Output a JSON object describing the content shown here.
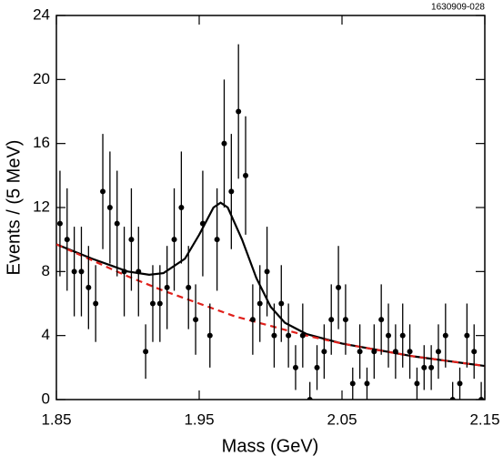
{
  "chart_data": {
    "type": "scatter",
    "annotation": "1630909-028",
    "x_label": "Mass (GeV)",
    "y_label": "Events / (5 MeV)",
    "xlim": [
      1.85,
      2.15
    ],
    "ylim": [
      0,
      24
    ],
    "xticks": [
      1.85,
      1.95,
      2.05,
      2.15
    ],
    "yticks": [
      0,
      4,
      8,
      12,
      16,
      20,
      24
    ],
    "points": {
      "color": "#000000",
      "x": [
        1.8525,
        1.8575,
        1.8625,
        1.8675,
        1.8725,
        1.8775,
        1.8825,
        1.8875,
        1.8925,
        1.8975,
        1.9025,
        1.9075,
        1.9125,
        1.9175,
        1.9225,
        1.9275,
        1.9325,
        1.9375,
        1.9425,
        1.9475,
        1.9525,
        1.9575,
        1.9625,
        1.9675,
        1.9725,
        1.9775,
        1.9825,
        1.9875,
        1.9925,
        1.9975,
        2.0025,
        2.0075,
        2.0125,
        2.0175,
        2.0225,
        2.0275,
        2.0325,
        2.0375,
        2.0425,
        2.0475,
        2.0525,
        2.0575,
        2.0625,
        2.0675,
        2.0725,
        2.0775,
        2.0825,
        2.0875,
        2.0925,
        2.0975,
        2.1025,
        2.1075,
        2.1125,
        2.1175,
        2.1225,
        2.1275,
        2.1325,
        2.1375,
        2.1425,
        2.1475
      ],
      "values": [
        11,
        10,
        8,
        8,
        7,
        6,
        13,
        12,
        11,
        8,
        10,
        8,
        3,
        6,
        6,
        7,
        10,
        12,
        7,
        5,
        11,
        4,
        10,
        16,
        13,
        18,
        14,
        5,
        6,
        8,
        4,
        6,
        4,
        2,
        4,
        0,
        2,
        3,
        5,
        7,
        5,
        1,
        3,
        1,
        3,
        5,
        4,
        3,
        4,
        3,
        1,
        2,
        2,
        3,
        4,
        0,
        1,
        4,
        3,
        0
      ],
      "errors": [
        3.3,
        3.2,
        2.8,
        2.8,
        2.6,
        2.4,
        3.6,
        3.5,
        3.3,
        2.8,
        3.2,
        2.8,
        1.7,
        2.4,
        2.4,
        2.6,
        3.2,
        3.5,
        2.6,
        2.2,
        3.3,
        2.0,
        3.2,
        4.0,
        3.6,
        4.2,
        3.7,
        2.2,
        2.4,
        2.8,
        2.0,
        2.4,
        2.0,
        1.4,
        2.0,
        1.1,
        1.4,
        1.7,
        2.2,
        2.6,
        2.2,
        1.0,
        1.7,
        1.0,
        1.7,
        2.2,
        2.0,
        1.7,
        2.0,
        1.7,
        1.0,
        1.4,
        1.4,
        1.7,
        2.0,
        1.1,
        1.0,
        2.0,
        1.7,
        1.1
      ]
    },
    "curves": [
      {
        "color": "#000000",
        "dash": false,
        "x": [
          1.85,
          1.875,
          1.9,
          1.915,
          1.925,
          1.94,
          1.95,
          1.96,
          1.965,
          1.97,
          1.98,
          1.99,
          2.0,
          2.01,
          2.025,
          2.05,
          2.075,
          2.1,
          2.125,
          2.15
        ],
        "values": [
          9.7,
          8.8,
          8.0,
          7.8,
          7.9,
          8.8,
          10.3,
          12.0,
          12.3,
          12.0,
          10.0,
          7.6,
          5.8,
          4.8,
          4.1,
          3.5,
          3.1,
          2.7,
          2.4,
          2.1
        ]
      },
      {
        "color": "#e0201b",
        "dash": true,
        "x": [
          1.85,
          1.875,
          1.9,
          1.925,
          1.95,
          1.975,
          2.0,
          2.025,
          2.05,
          2.075,
          2.1,
          2.125,
          2.15
        ],
        "values": [
          9.7,
          8.7,
          7.7,
          6.8,
          6.0,
          5.2,
          4.6,
          4.0,
          3.5,
          3.1,
          2.7,
          2.4,
          2.1
        ]
      }
    ]
  }
}
